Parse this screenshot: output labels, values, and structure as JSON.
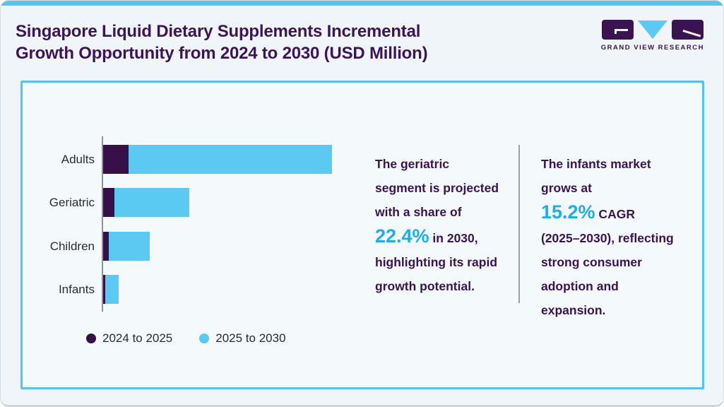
{
  "header": {
    "title_line1": "Singapore Liquid Dietary Supplements Incremental",
    "title_line2": "Growth Opportunity from 2024 to 2030 (USD Million)",
    "brand": "GRAND VIEW RESEARCH"
  },
  "colors": {
    "purple_dark": "#351147",
    "text_purple": "#3a1353",
    "light_blue": "#5bc9f2",
    "accent_blue": "#1caee9",
    "panel_border": "#55c3ef",
    "axis_gray": "#8d9398"
  },
  "chart_data": {
    "type": "bar",
    "orientation": "horizontal",
    "stacked": true,
    "categories": [
      "Adults",
      "Geriatric",
      "Children",
      "Infants"
    ],
    "series": [
      {
        "name": "2024 to 2025",
        "color": "#351147",
        "values": [
          11.1,
          4.9,
          2.5,
          0.8
        ]
      },
      {
        "name": "2025 to 2030",
        "color": "#5bc9f2",
        "values": [
          88.9,
          32.7,
          17.9,
          5.9
        ]
      }
    ],
    "value_axis_visible": false,
    "values_note": "Relative units estimated from bar lengths; chart shows no numeric axis labels. Largest stacked total (Adults) normalized to 100.",
    "legend_position": "bottom",
    "xlabel": "",
    "ylabel": ""
  },
  "insights": [
    {
      "text_before": "The geriatric segment is projected with a share of ",
      "accent": "22.4%",
      "text_after": " in 2030, highlighting its rapid growth potential."
    },
    {
      "text_before": "The infants market grows at\n",
      "accent": "15.2%",
      "text_after": " CAGR (2025–2030), reflecting strong consumer adoption and expansion."
    }
  ]
}
